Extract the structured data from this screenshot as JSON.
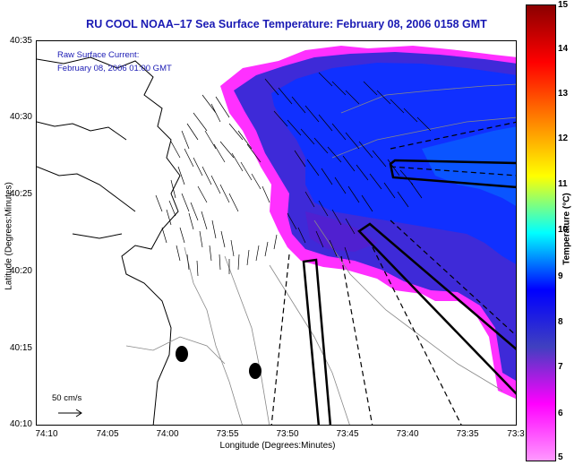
{
  "title": "RU COOL  NOAA–17  Sea Surface Temperature:  February 08, 2006 0158 GMT",
  "legend": {
    "line1": "Raw Surface Current:",
    "line2": "February 08, 2006 01:00 GMT",
    "scale_label": "50 cm/s"
  },
  "axes": {
    "xlabel": "Longitude (Degrees:Minutes)",
    "ylabel": "Latitude (Degrees:Minutes)",
    "xticks": [
      "74:10",
      "74:05",
      "74:00",
      "73:55",
      "73:50",
      "73:45",
      "73:40",
      "73:35",
      "73:3"
    ],
    "yticks": [
      "40:35",
      "40:30",
      "40:25",
      "40:20",
      "40:15",
      "40:10"
    ]
  },
  "colorbar": {
    "label": "Temperature (°C)",
    "ticks": [
      "15",
      "14",
      "13",
      "12",
      "11",
      "10",
      "9",
      "8",
      "7",
      "6",
      "5"
    ],
    "colors": [
      "#8b0000",
      "#ff0000",
      "#ff8000",
      "#ffff00",
      "#00ffff",
      "#0000ff",
      "#4040c0",
      "#ff00ff",
      "#ff99ff"
    ]
  }
}
